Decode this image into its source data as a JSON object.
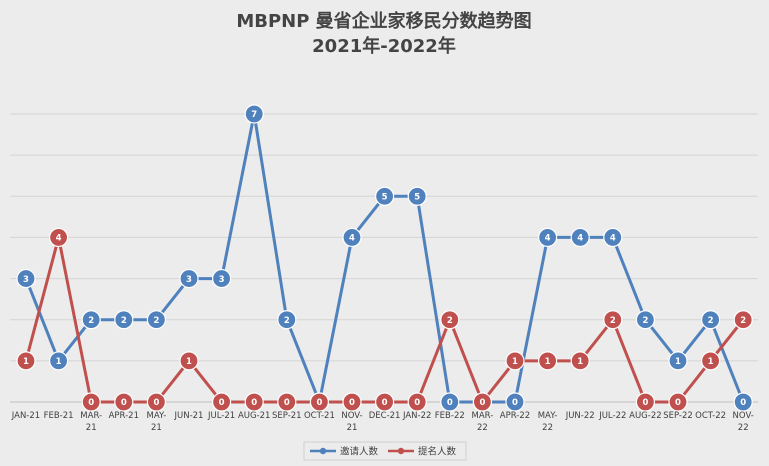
{
  "chart_data": {
    "type": "line",
    "title": "MBPNP 曼省企业家移民分数趋势图",
    "subtitle": "2021年-2022年",
    "xlabel": "",
    "ylabel": "",
    "ylim": [
      0,
      7
    ],
    "grid": true,
    "legend_position": "bottom",
    "categories": [
      "JAN-21",
      "FEB-21",
      "MAR-\n21",
      "APR-21",
      "MAY-\n21",
      "JUN-21",
      "JUL-21",
      "AUG-21",
      "SEP-21",
      "OCT-21",
      "NOV-\n21",
      "DEC-21",
      "JAN-22",
      "FEB-22",
      "MAR-\n22",
      "APR-22",
      "MAY-\n22",
      "JUN-22",
      "JUL-22",
      "AUG-22",
      "SEP-22",
      "OCT-22",
      "NOV-\n22"
    ],
    "series": [
      {
        "name": "邀请人数",
        "color": "#4f81bd",
        "values": [
          3,
          1,
          2,
          2,
          2,
          3,
          3,
          7,
          2,
          0,
          4,
          5,
          5,
          0,
          0,
          0,
          4,
          4,
          4,
          2,
          1,
          2,
          0
        ]
      },
      {
        "name": "提名人数",
        "color": "#c0504d",
        "values": [
          1,
          4,
          0,
          0,
          0,
          1,
          0,
          0,
          0,
          0,
          0,
          0,
          0,
          2,
          0,
          1,
          1,
          1,
          2,
          0,
          0,
          1,
          2
        ]
      }
    ]
  }
}
